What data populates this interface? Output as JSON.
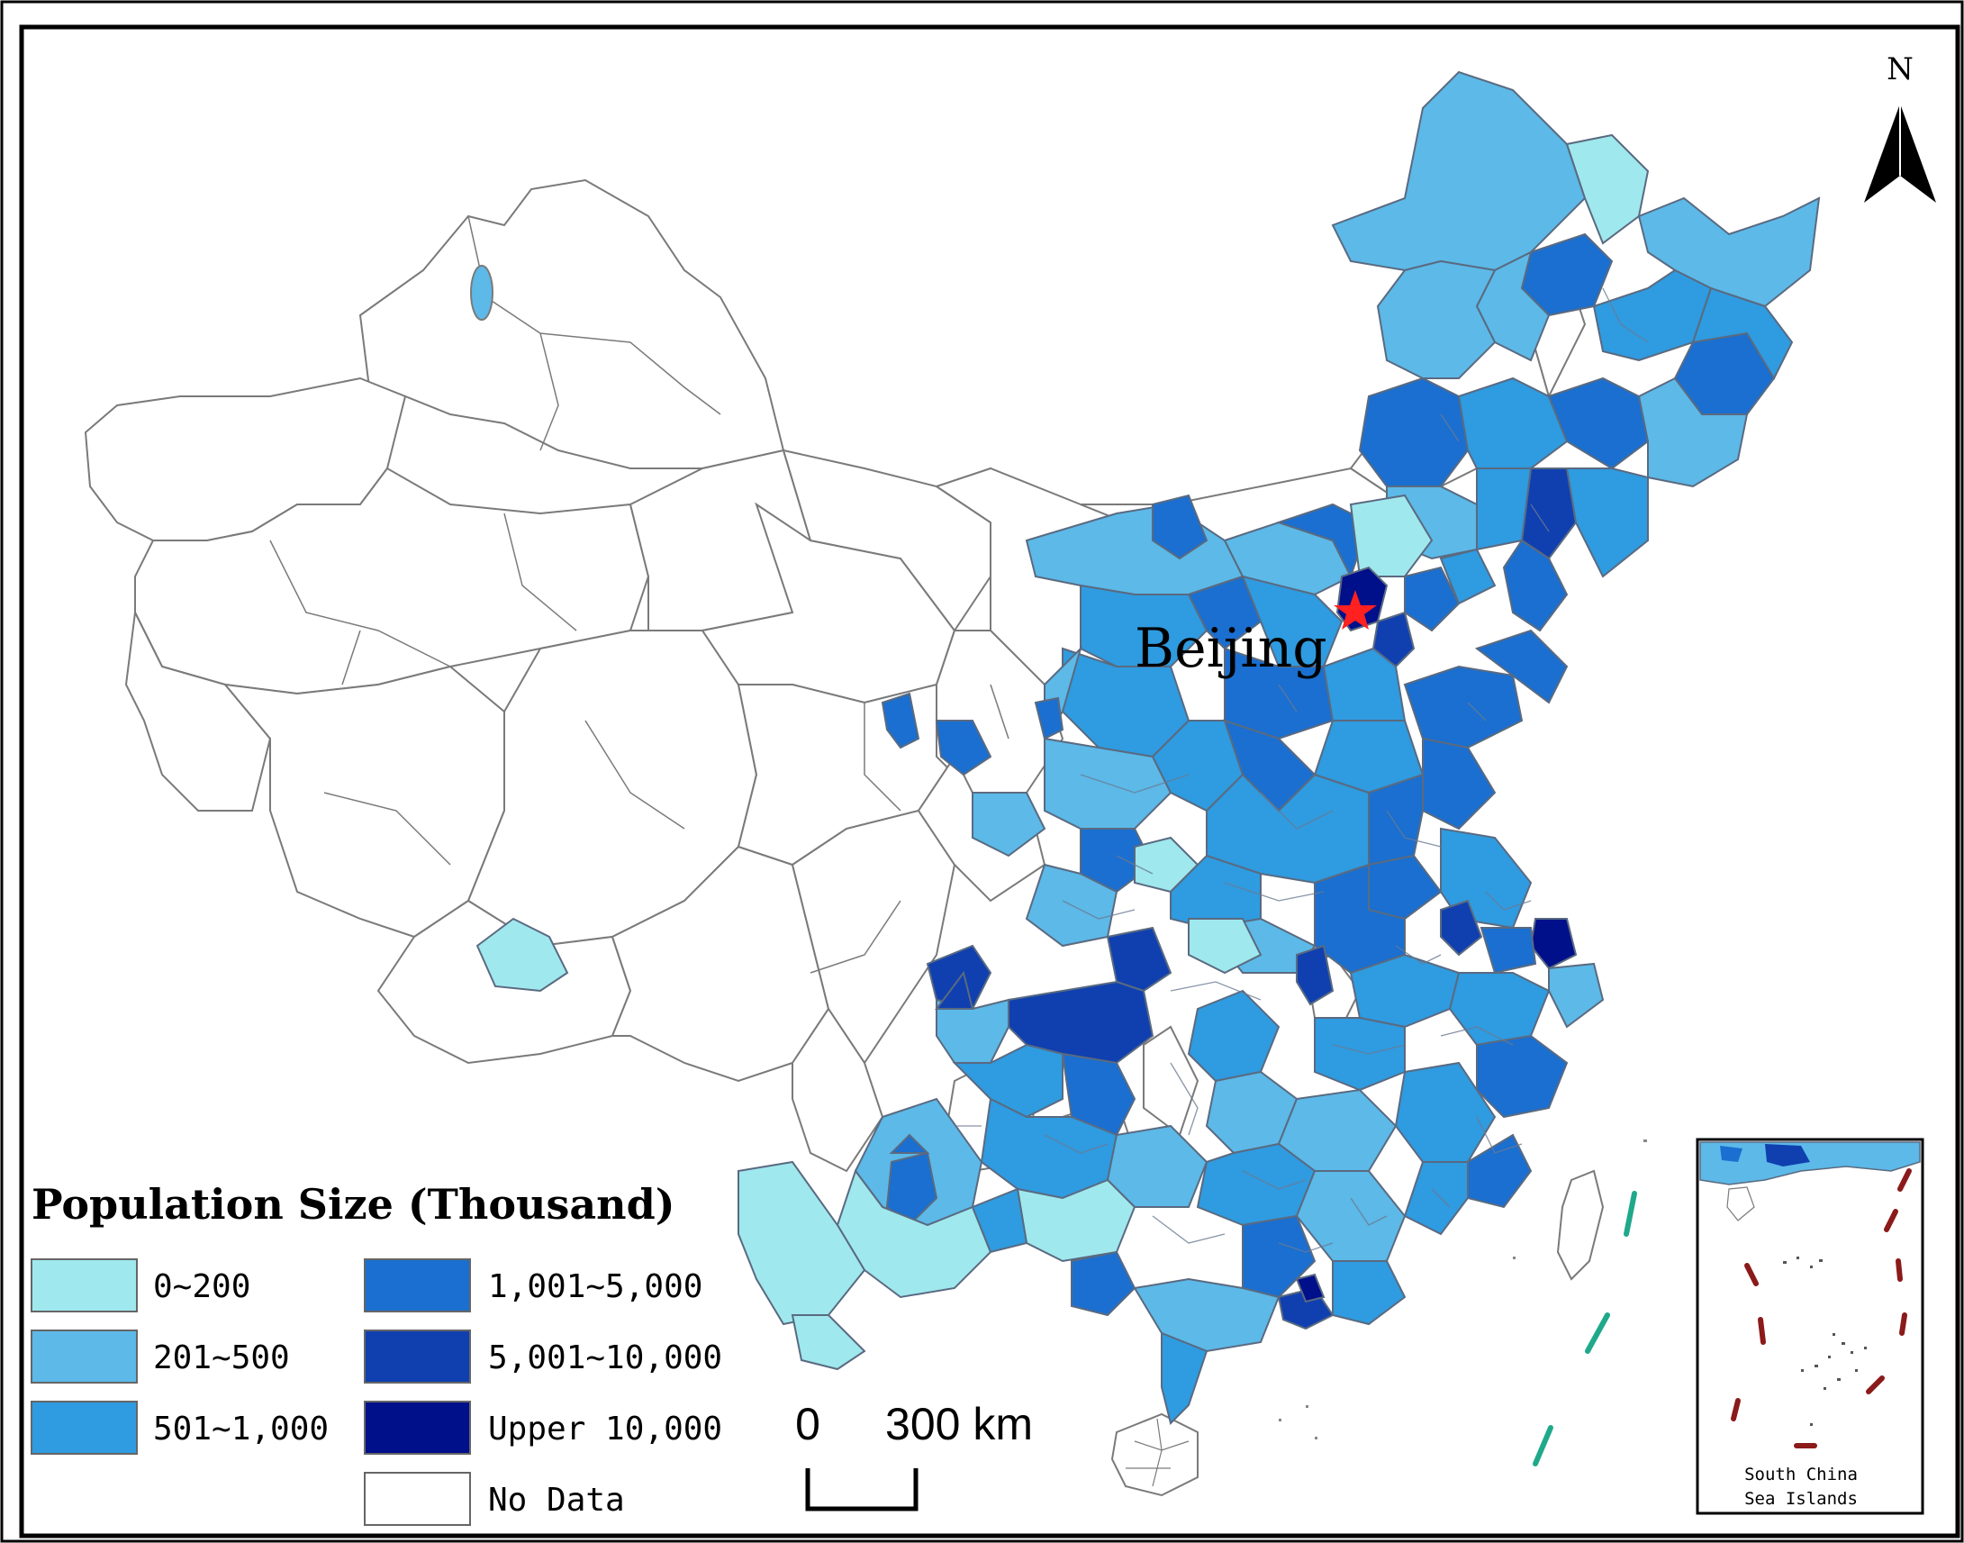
{
  "map": {
    "city_label": "Beijing",
    "north_label": "N",
    "inset_label_line1": "South China",
    "inset_label_line2": "Sea Islands"
  },
  "legend": {
    "title": "Population Size (Thousand)",
    "items": [
      {
        "label": "0~200",
        "color": "#9fe8ee"
      },
      {
        "label": "201~500",
        "color": "#5cb9e8"
      },
      {
        "label": "501~1,000",
        "color": "#2f9be0"
      },
      {
        "label": "1,001~5,000",
        "color": "#1a6fd0"
      },
      {
        "label": "5,001~10,000",
        "color": "#1040b0"
      },
      {
        "label": "Upper 10,000",
        "color": "#000f8a"
      },
      {
        "label": "No Data",
        "color": "#ffffff"
      }
    ]
  },
  "scale_bar": {
    "start_label": "0",
    "end_label": "300 km"
  },
  "colors": {
    "border": "#7a7a7a",
    "star": "#ff2020",
    "dash_line": "#1fa98a",
    "nine_dash": "#8b1a1a"
  }
}
